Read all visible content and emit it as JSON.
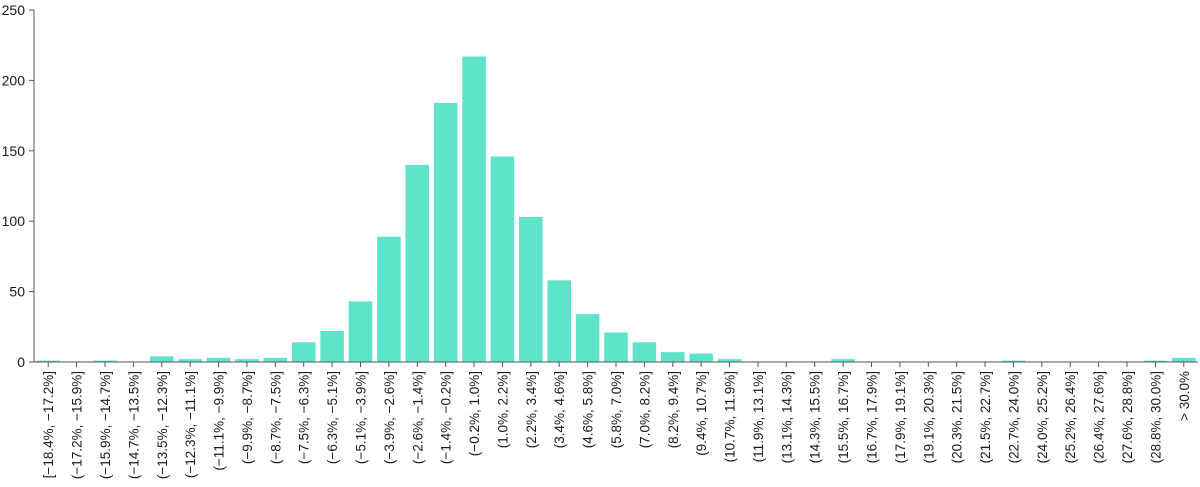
{
  "chart_data": {
    "type": "bar",
    "title": "",
    "xlabel": "",
    "ylabel": "",
    "ylim": [
      0,
      250
    ],
    "yticks": [
      0,
      50,
      100,
      150,
      200,
      250
    ],
    "grid": false,
    "legend": "none",
    "bar_color": "#5fe3cb",
    "categories": [
      "[−18.4%, −17.2%]",
      "(−17.2%, −15.9%]",
      "(−15.9%, −14.7%]",
      "(−14.7%, −13.5%]",
      "(−13.5%, −12.3%]",
      "(−12.3%, −11.1%]",
      "(−11.1%, −9.9%]",
      "(−9.9%, −8.7%]",
      "(−8.7%, −7.5%]",
      "(−7.5%, −6.3%]",
      "(−6.3%, −5.1%]",
      "(−5.1%, −3.9%]",
      "(−3.9%, −2.6%]",
      "(−2.6%, −1.4%]",
      "(−1.4%, −0.2%]",
      "(−0.2%, 1.0%]",
      "(1.0%, 2.2%]",
      "(2.2%, 3.4%]",
      "(3.4%, 4.6%]",
      "(4.6%, 5.8%]",
      "(5.8%, 7.0%]",
      "(7.0%, 8.2%]",
      "(8.2%, 9.4%]",
      "(9.4%, 10.7%]",
      "(10.7%, 11.9%]",
      "(11.9%, 13.1%]",
      "(13.1%, 14.3%]",
      "(14.3%, 15.5%]",
      "(15.5%, 16.7%]",
      "(16.7%, 17.9%]",
      "(17.9%, 19.1%]",
      "(19.1%, 20.3%]",
      "(20.3%, 21.5%]",
      "(21.5%, 22.7%]",
      "(22.7%, 24.0%]",
      "(24.0%, 25.2%]",
      "(25.2%, 26.4%]",
      "(26.4%, 27.6%]",
      "(27.6%, 28.8%]",
      "(28.8%, 30.0%]",
      "> 30.0%"
    ],
    "values": [
      1,
      0,
      1,
      0,
      4,
      2,
      3,
      2,
      3,
      14,
      22,
      43,
      89,
      140,
      184,
      217,
      146,
      103,
      58,
      34,
      21,
      14,
      7,
      6,
      2,
      0,
      0,
      0,
      2,
      0,
      0,
      0,
      0,
      0,
      1,
      0,
      0,
      0,
      0,
      1,
      3
    ]
  }
}
